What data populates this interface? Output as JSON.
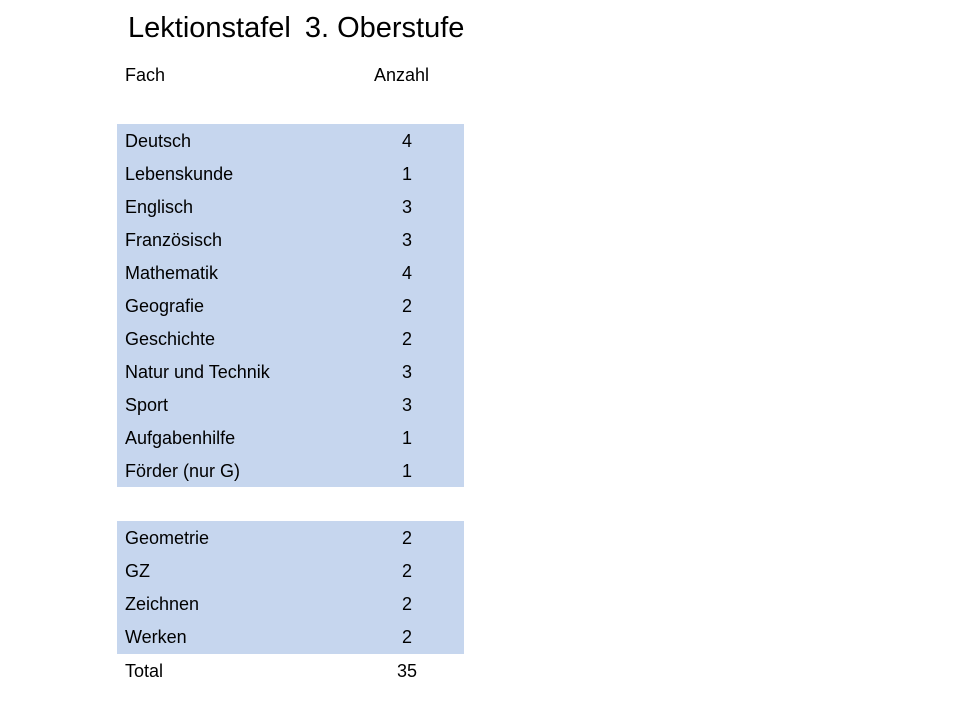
{
  "title": {
    "part1": "Lektionstafel",
    "part2": "3. Oberstufe"
  },
  "headers": {
    "subject": "Fach",
    "count": "Anzahl"
  },
  "colors": {
    "row_background": "#c6d6ee"
  },
  "group1": [
    {
      "subject": "Deutsch",
      "count": "4"
    },
    {
      "subject": "Lebenskunde",
      "count": "1"
    },
    {
      "subject": "Englisch",
      "count": "3"
    },
    {
      "subject": "Französisch",
      "count": "3"
    },
    {
      "subject": "Mathematik",
      "count": "4"
    },
    {
      "subject": "Geografie",
      "count": "2"
    },
    {
      "subject": "Geschichte",
      "count": "2"
    },
    {
      "subject": "Natur und Technik",
      "count": "3"
    },
    {
      "subject": "Sport",
      "count": "3"
    },
    {
      "subject": "Aufgabenhilfe",
      "count": "1"
    },
    {
      "subject": "Förder (nur G)",
      "count": "1"
    }
  ],
  "group2": [
    {
      "subject": "Geometrie",
      "count": "2"
    },
    {
      "subject": "GZ",
      "count": "2"
    },
    {
      "subject": "Zeichnen",
      "count": "2"
    },
    {
      "subject": "Werken",
      "count": "2"
    }
  ],
  "total": {
    "label": "Total",
    "count": "35"
  }
}
